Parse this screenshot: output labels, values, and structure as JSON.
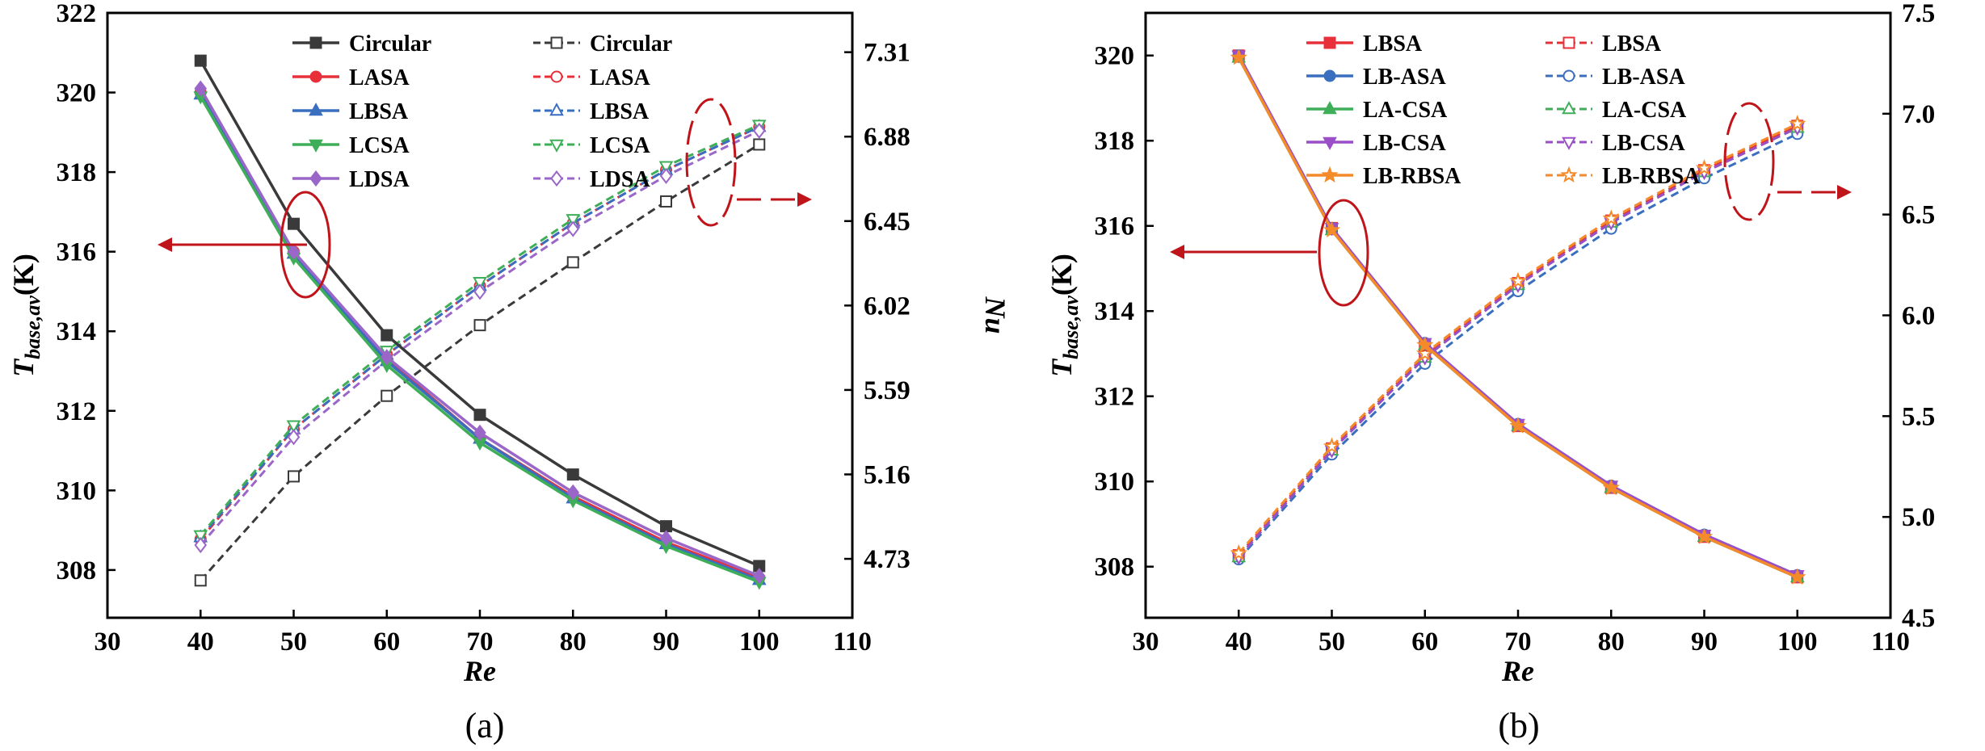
{
  "chart_data": [
    {
      "type": "line",
      "panel_label": "(a)",
      "xlabel": "Re",
      "ylabel_main": "T",
      "ylabel_sub": "base,av",
      "ylabel_unit": "(K)",
      "y2label": "Nu",
      "xlim": [
        30,
        110
      ],
      "xticks": [
        30,
        40,
        50,
        60,
        70,
        80,
        90,
        100,
        110
      ],
      "ylim": [
        306.8,
        322
      ],
      "yticks": [
        308,
        310,
        312,
        314,
        316,
        318,
        320,
        322
      ],
      "y2lim": [
        4.43,
        7.51
      ],
      "y2ticks": [
        4.73,
        5.16,
        5.59,
        6.02,
        6.45,
        6.88,
        7.31
      ],
      "x": [
        40,
        50,
        60,
        70,
        80,
        90,
        100
      ],
      "series_T": [
        {
          "name": "Circular",
          "color": "#3a3a3a",
          "marker": "square",
          "values": [
            320.8,
            316.7,
            313.9,
            311.9,
            310.4,
            309.1,
            308.1
          ]
        },
        {
          "name": "LASA",
          "color": "#e8303a",
          "marker": "circle",
          "values": [
            320.0,
            316.0,
            313.3,
            311.3,
            309.85,
            308.7,
            307.8
          ]
        },
        {
          "name": "LBSA",
          "color": "#3a6fc0",
          "marker": "triangle",
          "values": [
            319.95,
            315.95,
            313.25,
            311.3,
            309.8,
            308.65,
            307.75
          ]
        },
        {
          "name": "LCSA",
          "color": "#3fae58",
          "marker": "triangle-down",
          "values": [
            319.9,
            315.85,
            313.15,
            311.2,
            309.75,
            308.6,
            307.7
          ]
        },
        {
          "name": "LDSA",
          "color": "#9a66c8",
          "marker": "diamond",
          "values": [
            320.1,
            316.0,
            313.35,
            311.45,
            309.95,
            308.8,
            307.85
          ]
        }
      ],
      "series_Nu": [
        {
          "name": "Circular",
          "color": "#3a3a3a",
          "marker": "square",
          "values": [
            4.62,
            5.15,
            5.56,
            5.92,
            6.24,
            6.55,
            6.84
          ]
        },
        {
          "name": "LASA",
          "color": "#e8303a",
          "marker": "circle",
          "values": [
            4.83,
            5.39,
            5.77,
            6.12,
            6.44,
            6.71,
            6.93
          ]
        },
        {
          "name": "LBSA",
          "color": "#3a6fc0",
          "marker": "triangle",
          "values": [
            4.84,
            5.39,
            5.77,
            6.12,
            6.44,
            6.71,
            6.93
          ]
        },
        {
          "name": "LCSA",
          "color": "#3fae58",
          "marker": "triangle-down",
          "values": [
            4.85,
            5.41,
            5.79,
            6.14,
            6.46,
            6.73,
            6.94
          ]
        },
        {
          "name": "LDSA",
          "color": "#9a66c8",
          "marker": "diamond",
          "values": [
            4.8,
            5.35,
            5.74,
            6.09,
            6.41,
            6.68,
            6.91
          ]
        }
      ]
    },
    {
      "type": "line",
      "panel_label": "(b)",
      "xlabel": "Re",
      "ylabel_main": "T",
      "ylabel_sub": "base,av",
      "ylabel_unit": "(K)",
      "y2label": "Nu",
      "xlim": [
        30,
        110
      ],
      "xticks": [
        30,
        40,
        50,
        60,
        70,
        80,
        90,
        100,
        110
      ],
      "ylim": [
        306.8,
        321
      ],
      "yticks": [
        308,
        310,
        312,
        314,
        316,
        318,
        320
      ],
      "y2lim": [
        4.5,
        7.5
      ],
      "y2ticks": [
        4.5,
        5.0,
        5.5,
        6.0,
        6.5,
        7.0,
        7.5
      ],
      "y2tick_labels": [
        "4.5",
        "5.0",
        "5.5",
        "6.0",
        "6.5",
        "7.0",
        "7.5"
      ],
      "x": [
        40,
        50,
        60,
        70,
        80,
        90,
        100
      ],
      "series_T": [
        {
          "name": "LBSA",
          "color": "#e8303a",
          "marker": "square",
          "values": [
            320.0,
            315.95,
            313.2,
            311.3,
            309.85,
            308.7,
            307.75
          ]
        },
        {
          "name": "LB-ASA",
          "color": "#3a6fc0",
          "marker": "circle",
          "values": [
            320.0,
            315.95,
            313.25,
            311.35,
            309.9,
            308.75,
            307.8
          ]
        },
        {
          "name": "LA-CSA",
          "color": "#3fae58",
          "marker": "triangle",
          "values": [
            319.95,
            315.9,
            313.2,
            311.3,
            309.85,
            308.7,
            307.75
          ]
        },
        {
          "name": "LB-CSA",
          "color": "#9a4fc8",
          "marker": "triangle-down",
          "values": [
            320.0,
            315.95,
            313.25,
            311.35,
            309.9,
            308.75,
            307.8
          ]
        },
        {
          "name": "LB-RBSA",
          "color": "#f58a2a",
          "marker": "star",
          "values": [
            319.95,
            315.9,
            313.2,
            311.3,
            309.85,
            308.7,
            307.75
          ]
        }
      ],
      "series_Nu": [
        {
          "name": "LBSA",
          "color": "#e8303a",
          "marker": "square",
          "values": [
            4.81,
            5.34,
            5.8,
            6.16,
            6.47,
            6.72,
            6.94
          ]
        },
        {
          "name": "LB-ASA",
          "color": "#3a6fc0",
          "marker": "circle",
          "values": [
            4.79,
            5.31,
            5.76,
            6.12,
            6.43,
            6.68,
            6.9
          ]
        },
        {
          "name": "LA-CSA",
          "color": "#3fae58",
          "marker": "triangle",
          "values": [
            4.8,
            5.33,
            5.79,
            6.15,
            6.46,
            6.71,
            6.93
          ]
        },
        {
          "name": "LB-CSA",
          "color": "#9a4fc8",
          "marker": "triangle-down",
          "values": [
            4.8,
            5.33,
            5.79,
            6.15,
            6.46,
            6.71,
            6.93
          ]
        },
        {
          "name": "LB-RBSA",
          "color": "#f58a2a",
          "marker": "star",
          "values": [
            4.82,
            5.35,
            5.81,
            6.17,
            6.48,
            6.73,
            6.95
          ]
        }
      ]
    }
  ]
}
